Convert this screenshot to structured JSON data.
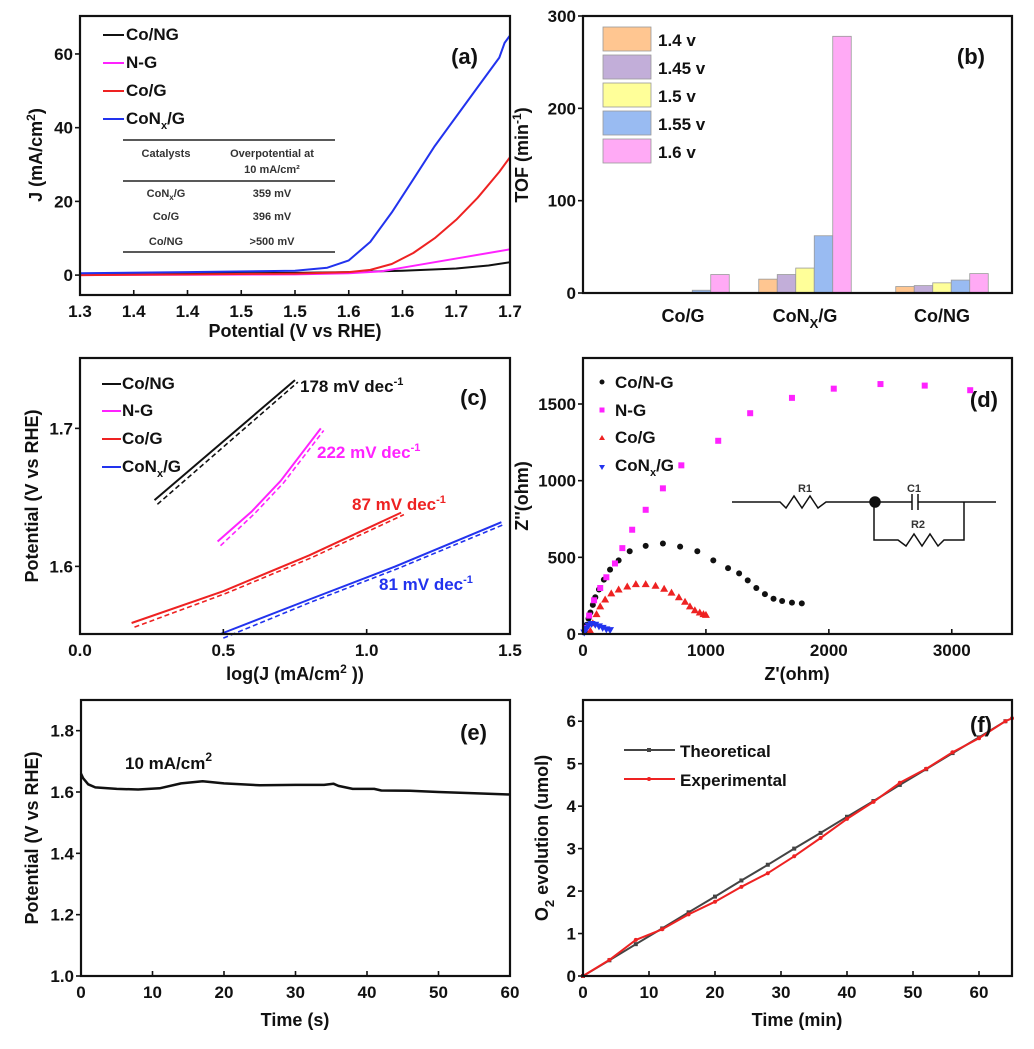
{
  "chart_data": [
    {
      "panel": "(a)",
      "type": "line",
      "xlabel": "Potential (V vs RHE)",
      "ylabel": "J (mA/cm2)",
      "xlim": [
        1.3,
        1.7
      ],
      "ylim": [
        -5.4,
        70.3
      ],
      "xticks": [
        1.3,
        1.35,
        1.4,
        1.45,
        1.5,
        1.55,
        1.6,
        1.65,
        1.7
      ],
      "xtick_labels": [
        "1.3",
        "1.4",
        "1.4",
        "1.5",
        "1.5",
        "1.6",
        "1.6",
        "1.7",
        "1.7"
      ],
      "yticks": [
        0,
        20,
        40,
        60
      ],
      "ytick_labels": [
        "0",
        "20",
        "40",
        "60"
      ],
      "legend_position": "top-left",
      "series": [
        {
          "name": "Co/NG",
          "color": "#111111",
          "x": [
            1.3,
            1.4,
            1.5,
            1.55,
            1.6,
            1.65,
            1.68,
            1.7
          ],
          "y": [
            0.2,
            0.4,
            0.6,
            0.8,
            1.2,
            1.8,
            2.6,
            3.5
          ]
        },
        {
          "name": "N-G",
          "color": "#ff22ff",
          "x": [
            1.3,
            1.4,
            1.5,
            1.55,
            1.58,
            1.6,
            1.63,
            1.66,
            1.7
          ],
          "y": [
            0.0,
            0.1,
            0.2,
            0.5,
            1.0,
            2.0,
            3.5,
            5.0,
            7.0
          ]
        },
        {
          "name": "Co/G",
          "color": "#ee2222",
          "x": [
            1.3,
            1.4,
            1.5,
            1.55,
            1.57,
            1.59,
            1.61,
            1.63,
            1.65,
            1.67,
            1.69,
            1.7
          ],
          "y": [
            0.0,
            0.2,
            0.4,
            0.8,
            1.4,
            3.0,
            6.0,
            10.0,
            15.0,
            21.0,
            28.0,
            32.0
          ]
        },
        {
          "name": "CoNx/G",
          "color": "#2233ee",
          "x": [
            1.3,
            1.4,
            1.5,
            1.53,
            1.55,
            1.57,
            1.59,
            1.61,
            1.63,
            1.65,
            1.67,
            1.69,
            1.695,
            1.7
          ],
          "y": [
            0.5,
            0.8,
            1.2,
            2.0,
            4.0,
            9.0,
            17.0,
            26.0,
            35.0,
            43.0,
            51.0,
            59.0,
            63.0,
            65.0
          ]
        }
      ],
      "annotations": [
        "(a)"
      ],
      "inset_table": {
        "headers": [
          "Catalysts",
          "Overpotential at",
          "10 mA/cm²"
        ],
        "rows": [
          [
            "CoNx/G",
            "359 mV"
          ],
          [
            "Co/G",
            "396 mV"
          ],
          [
            "Co/NG",
            ">500 mV"
          ]
        ]
      }
    },
    {
      "panel": "(b)",
      "type": "bar",
      "title": "",
      "xlabel": "",
      "ylabel": "TOF (min-1)",
      "ylim": [
        0,
        300
      ],
      "yticks": [
        0,
        100,
        200,
        300
      ],
      "categories": [
        "Co/G",
        "CoNx/G",
        "Co/NG"
      ],
      "legend_position": "top-left",
      "series": [
        {
          "name": "1.4 v",
          "color": "#ffc691",
          "values": [
            0.5,
            15,
            7
          ]
        },
        {
          "name": "1.45 v",
          "color": "#c2aed9",
          "values": [
            0,
            20,
            8
          ]
        },
        {
          "name": "1.5 v",
          "color": "#ffff99",
          "values": [
            0,
            27,
            11
          ]
        },
        {
          "name": "1.55 v",
          "color": "#99bbf2",
          "values": [
            3,
            62,
            14
          ]
        },
        {
          "name": "1.6 v",
          "color": "#ffaaf5",
          "values": [
            20,
            278,
            21
          ]
        }
      ],
      "annotations": [
        "(b)"
      ]
    },
    {
      "panel": "(c)",
      "type": "line",
      "xlabel": "log(J (mA/cm2 ))",
      "ylabel": "Potential (V vs RHE)",
      "xlim": [
        0.0,
        1.5
      ],
      "ylim": [
        1.551,
        1.751
      ],
      "xticks": [
        0.0,
        0.5,
        1.0,
        1.5
      ],
      "xtick_labels": [
        "0.0",
        "0.5",
        "1.0",
        "1.5"
      ],
      "yticks": [
        1.6,
        1.7
      ],
      "ytick_labels": [
        "1.6",
        "1.7"
      ],
      "legend_position": "top-left",
      "series": [
        {
          "name": "Co/NG",
          "color": "#111111",
          "x": [
            0.26,
            0.75
          ],
          "y": [
            1.648,
            1.735
          ],
          "slope_label": "178 mV dec-1"
        },
        {
          "name": "N-G",
          "color": "#ff22ff",
          "x": [
            0.48,
            0.6,
            0.7,
            0.84
          ],
          "y": [
            1.618,
            1.64,
            1.662,
            1.7
          ],
          "slope_label": "222 mV dec-1"
        },
        {
          "name": "Co/G",
          "color": "#ee2222",
          "x": [
            0.18,
            0.5,
            0.8,
            1.12
          ],
          "y": [
            1.559,
            1.582,
            1.608,
            1.639
          ],
          "slope_label": "87 mV dec-1"
        },
        {
          "name": "CoNx/G",
          "color": "#2233ee",
          "x": [
            0.49,
            0.8,
            1.1,
            1.47
          ],
          "y": [
            1.551,
            1.576,
            1.6,
            1.632
          ],
          "slope_label": "81 mV dec-1"
        }
      ],
      "annotations": [
        "(c)"
      ]
    },
    {
      "panel": "(d)",
      "type": "scatter",
      "xlabel": "Z'(ohm)",
      "ylabel": "Z''(ohm)",
      "xlim": [
        0,
        3490
      ],
      "ylim": [
        0,
        1800
      ],
      "xticks": [
        0,
        1000,
        2000,
        3000
      ],
      "yticks": [
        0,
        500,
        1000,
        1500
      ],
      "legend_position": "top-left",
      "series": [
        {
          "name": "Co/N-G",
          "color": "#111111",
          "marker": "circle",
          "x": [
            15,
            30,
            45,
            60,
            80,
            100,
            130,
            170,
            220,
            290,
            380,
            510,
            650,
            790,
            930,
            1060,
            1180,
            1270,
            1340,
            1410,
            1480,
            1550,
            1620,
            1700,
            1780
          ],
          "y": [
            20,
            60,
            100,
            140,
            190,
            240,
            290,
            355,
            420,
            480,
            540,
            575,
            590,
            570,
            540,
            480,
            430,
            395,
            350,
            300,
            260,
            230,
            215,
            205,
            200
          ]
        },
        {
          "name": "N-G",
          "color": "#ff22ff",
          "marker": "square",
          "x": [
            20,
            50,
            90,
            140,
            190,
            260,
            320,
            400,
            510,
            650,
            800,
            1100,
            1360,
            1700,
            2040,
            2420,
            2780,
            3150
          ],
          "y": [
            40,
            120,
            220,
            300,
            370,
            460,
            560,
            680,
            810,
            950,
            1100,
            1260,
            1440,
            1540,
            1600,
            1630,
            1620,
            1590
          ]
        },
        {
          "name": "Co/G",
          "color": "#ee2222",
          "marker": "triangle-up",
          "x": [
            60,
            80,
            110,
            140,
            180,
            230,
            290,
            360,
            430,
            510,
            590,
            660,
            720,
            780,
            830,
            870,
            910,
            950,
            980,
            1000
          ],
          "y": [
            20,
            70,
            130,
            180,
            225,
            265,
            290,
            310,
            325,
            325,
            315,
            295,
            270,
            240,
            210,
            180,
            155,
            140,
            130,
            125
          ]
        },
        {
          "name": "CoNx/G",
          "color": "#2233ee",
          "marker": "triangle-down",
          "x": [
            10,
            25,
            45,
            70,
            100,
            130,
            160,
            190,
            220
          ],
          "y": [
            10,
            35,
            55,
            65,
            60,
            50,
            40,
            30,
            25
          ]
        }
      ],
      "inset_circuit": {
        "labels": [
          "R1",
          "C1",
          "R2"
        ]
      },
      "annotations": [
        "(d)"
      ]
    },
    {
      "panel": "(e)",
      "type": "line",
      "xlabel": "Time (s)",
      "ylabel": "Potential (V vs RHE)",
      "xlim": [
        0,
        60
      ],
      "ylim": [
        1.0,
        1.9
      ],
      "xticks": [
        0,
        10,
        20,
        30,
        40,
        50,
        60
      ],
      "yticks": [
        1.0,
        1.2,
        1.4,
        1.6,
        1.8
      ],
      "ytick_labels": [
        "1.0",
        "1.2",
        "1.4",
        "1.6",
        "1.8"
      ],
      "series": [
        {
          "name": "10 mA/cm2",
          "color": "#111111",
          "x": [
            0,
            0.3,
            1,
            2,
            5,
            8,
            11,
            14,
            17,
            20,
            25,
            30,
            34,
            35.3,
            36,
            38,
            41,
            42,
            46,
            50,
            55,
            60
          ],
          "y": [
            1.66,
            1.645,
            1.625,
            1.615,
            1.61,
            1.608,
            1.612,
            1.628,
            1.635,
            1.628,
            1.622,
            1.623,
            1.623,
            1.627,
            1.62,
            1.61,
            1.61,
            1.605,
            1.604,
            1.6,
            1.596,
            1.592
          ]
        }
      ],
      "annotations": [
        "(e)",
        "10 mA/cm2"
      ]
    },
    {
      "panel": "(f)",
      "type": "line",
      "xlabel": "Time (min)",
      "ylabel": "O2 evolution (umol)",
      "xlim": [
        0,
        65
      ],
      "ylim": [
        0,
        6.5
      ],
      "xticks": [
        0,
        10,
        20,
        30,
        40,
        50,
        60
      ],
      "yticks": [
        0,
        1,
        2,
        3,
        4,
        5,
        6
      ],
      "legend_position": "top-left",
      "series": [
        {
          "name": "Theoretical",
          "color": "#444444",
          "x": [
            0,
            4,
            8,
            12,
            16,
            20,
            24,
            28,
            32,
            36,
            40,
            44,
            48,
            52,
            56,
            60,
            64
          ],
          "y": [
            0,
            0.37,
            0.75,
            1.12,
            1.5,
            1.87,
            2.25,
            2.62,
            3.0,
            3.37,
            3.75,
            4.12,
            4.5,
            4.87,
            5.25,
            5.62,
            6.0
          ]
        },
        {
          "name": "Experimental",
          "color": "#ee2222",
          "x": [
            0,
            4,
            8,
            12,
            16,
            20,
            24,
            28,
            32,
            36,
            40,
            44,
            48,
            52,
            56,
            60,
            64,
            65
          ],
          "y": [
            0,
            0.38,
            0.85,
            1.1,
            1.45,
            1.75,
            2.1,
            2.42,
            2.82,
            3.25,
            3.7,
            4.1,
            4.55,
            4.88,
            5.27,
            5.6,
            6.0,
            6.07
          ]
        }
      ],
      "annotations": [
        "(f)"
      ]
    }
  ],
  "labels": {
    "a": {
      "tag": "(a)",
      "ylabel_main": "J (mA/cm",
      "ylabel_sup": "2",
      "ylabel_end": ")",
      "xlabel": "Potential (V vs RHE)",
      "legend": [
        "Co/NG",
        "N-G",
        "Co/G",
        "CoN"
      ],
      "legend_sub": "x",
      "legend_tail": "/G",
      "table_h1": "Catalysts",
      "table_h2a": "Overpotential at",
      "table_h2b": "10 mA/cm²",
      "r1c1": "CoN",
      "r1c1_sub": "x",
      "r1c1_tail": "/G",
      "r1c2": "359 mV",
      "r2c1": "Co/G",
      "r2c2": "396 mV",
      "r3c1": "Co/NG",
      "r3c2": ">500 mV"
    },
    "b": {
      "tag": "(b)",
      "ylabel_main": "TOF (min",
      "ylabel_sup": "-1",
      "ylabel_end": ")",
      "cat1": "Co/G",
      "cat2a": "CoN",
      "cat2sub": "X",
      "cat2b": "/G",
      "cat3": "Co/NG"
    },
    "c": {
      "tag": "(c)",
      "ylabel": "Potential (V vs RHE)",
      "xlabel_main": "log(J (mA/cm",
      "xlabel_sup": "2",
      "xlabel_end": " ))",
      "legend": [
        "Co/NG",
        "N-G",
        "Co/G",
        "CoN"
      ],
      "legend_sub": "x",
      "legend_tail": "/G",
      "slope_unit": " mV dec",
      "slope_sup": "-1",
      "slopes": [
        "178",
        "222",
        "87",
        "81"
      ]
    },
    "d": {
      "tag": "(d)",
      "ylabel": "Z''(ohm)",
      "xlabel": "Z'(ohm)",
      "legend": [
        "Co/N-G",
        "N-G",
        "Co/G",
        "CoN"
      ],
      "legend_sub": "x",
      "legend_tail": "/G",
      "r1": "R1",
      "c1": "C1",
      "r2": "R2"
    },
    "e": {
      "tag": "(e)",
      "ylabel": "Potential (V vs RHE)",
      "xlabel": "Time (s)",
      "note_main": "10 mA/cm",
      "note_sup": "2"
    },
    "f": {
      "tag": "(f)",
      "ylabel_a": "O",
      "ylabel_sub": "2",
      "ylabel_b": " evolution (umol)",
      "xlabel": "Time (min)",
      "legend": [
        "Theoretical",
        "Experimental"
      ]
    }
  }
}
